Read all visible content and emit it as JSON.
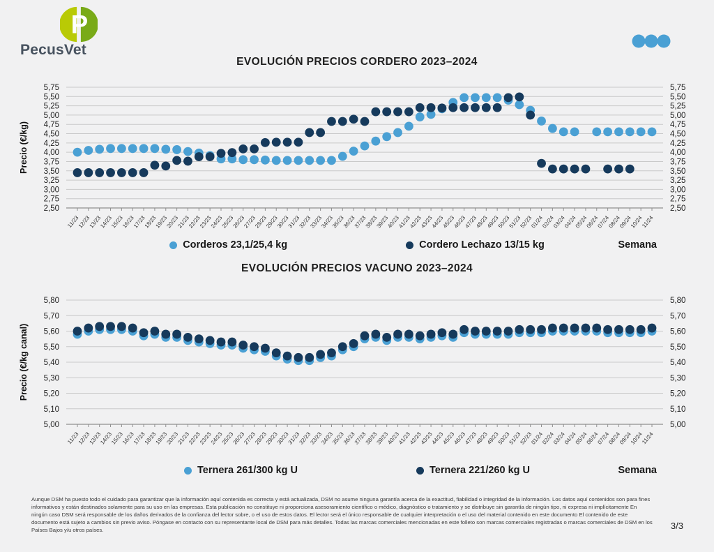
{
  "page": {
    "background": "#f1f1f2",
    "page_number": "3/3"
  },
  "header": {
    "brand": "PecusVet",
    "logo_letter": "P",
    "logo_color_left": "#b9ca05",
    "logo_color_right": "#79aa18",
    "dots_color": "#4aa0d4"
  },
  "footer": {
    "disclaimer": "Aunque DSM ha puesto todo el cuidado para garantizar que la información aquí contenida es correcta y está actualizada, DSM no asume ninguna garantía acerca de la exactitud, fiabilidad o integridad de la información. Los datos aquí contenidos son para fines informativos y están destinados solamente para su uso en las empresas. Esta publicación no constituye ni proporciona asesoramiento científico o médico, diagnóstico o tratamiento y se distribuye sin garantía de ningún tipo, ni expresa ni implícitamente En ningún caso DSM será responsable de los daños derivados de la confianza del lector sobre, o el uso de estos datos. El lector será el único responsable de cualquier interpretación o el uso del material contenido en este documento El contenido de este documento está sujeto a cambios sin previo aviso. Póngase en contacto con su representante local de DSM para más detalles. Todas las marcas comerciales mencionadas en este folleto son marcas comerciales registradas o marcas comerciales de DSM en los Países Bajos y/u otros países."
  },
  "chart_data": [
    {
      "type": "scatter",
      "title": "EVOLUCIÓN PRECIOS CORDERO 2023–2024",
      "ylabel": "Precio (€/kg)",
      "xlabel": "Semana",
      "ylim": [
        2.5,
        5.75
      ],
      "ytick_step": 0.25,
      "grid": true,
      "legend_position": "bottom",
      "categories": [
        "11/23",
        "12/23",
        "13/23",
        "14/23",
        "15/23",
        "16/23",
        "17/23",
        "18/23",
        "19/23",
        "20/23",
        "21/23",
        "22/23",
        "23/23",
        "24/23",
        "25/23",
        "26/23",
        "27/23",
        "28/23",
        "29/23",
        "30/23",
        "31/23",
        "32/23",
        "33/23",
        "34/23",
        "35/23",
        "36/23",
        "37/23",
        "38/23",
        "39/23",
        "40/23",
        "41/23",
        "42/23",
        "43/23",
        "44/23",
        "45/23",
        "46/23",
        "47/23",
        "48/23",
        "49/23",
        "50/23",
        "51/23",
        "52/23",
        "01/24",
        "02/24",
        "03/24",
        "04/24",
        "05/24",
        "06/24",
        "07/24",
        "08/24",
        "09/24",
        "10/24",
        "11/24"
      ],
      "series": [
        {
          "name": "Corderos 23,1/25,4 kg",
          "color": "#4aa0d4",
          "values": [
            4.0,
            4.05,
            4.08,
            4.1,
            4.1,
            4.1,
            4.1,
            4.1,
            4.08,
            4.07,
            4.02,
            3.98,
            3.91,
            3.82,
            3.82,
            3.8,
            3.8,
            3.79,
            3.78,
            3.78,
            3.78,
            3.78,
            3.78,
            3.78,
            3.89,
            4.03,
            4.17,
            4.3,
            4.42,
            4.53,
            4.7,
            4.95,
            5.02,
            5.17,
            5.34,
            5.47,
            5.47,
            5.47,
            5.47,
            5.4,
            5.28,
            5.13,
            4.84,
            4.64,
            4.55,
            4.55,
            null,
            4.55,
            4.55,
            4.55,
            4.55,
            4.55,
            4.55
          ]
        },
        {
          "name": "Cordero Lechazo 13/15 kg",
          "color": "#163a5c",
          "values": [
            3.45,
            3.45,
            3.45,
            3.45,
            3.45,
            3.45,
            3.45,
            3.65,
            3.63,
            3.78,
            3.76,
            3.88,
            3.88,
            3.97,
            3.99,
            4.09,
            4.09,
            4.26,
            4.27,
            4.27,
            4.27,
            4.53,
            4.53,
            4.83,
            4.83,
            4.89,
            4.83,
            5.09,
            5.09,
            5.09,
            5.09,
            5.2,
            5.2,
            5.19,
            5.2,
            5.2,
            5.2,
            5.2,
            5.2,
            5.47,
            5.49,
            5.0,
            3.7,
            3.55,
            3.55,
            3.55,
            3.55,
            null,
            3.55,
            3.55,
            3.55,
            null,
            null
          ]
        }
      ]
    },
    {
      "type": "scatter",
      "title": "EVOLUCIÓN PRECIOS VACUNO 2023–2024",
      "ylabel": "Precio (€/kg canal)",
      "xlabel": "Semana",
      "ylim": [
        5.0,
        5.8
      ],
      "ytick_step": 0.1,
      "grid": true,
      "legend_position": "bottom",
      "categories": [
        "11/23",
        "12/23",
        "13/23",
        "14/23",
        "15/23",
        "16/23",
        "17/23",
        "18/23",
        "19/23",
        "20/23",
        "21/23",
        "22/23",
        "23/23",
        "24/23",
        "25/23",
        "26/23",
        "27/23",
        "28/23",
        "29/23",
        "30/23",
        "31/23",
        "32/23",
        "33/23",
        "34/23",
        "35/23",
        "36/23",
        "37/23",
        "38/23",
        "39/23",
        "40/23",
        "41/23",
        "42/23",
        "43/23",
        "44/23",
        "45/23",
        "46/23",
        "47/23",
        "48/23",
        "49/23",
        "50/23",
        "51/23",
        "52/23",
        "01/24",
        "02/24",
        "03/24",
        "04/24",
        "05/24",
        "06/24",
        "07/24",
        "08/24",
        "09/24",
        "10/24",
        "11/24"
      ],
      "series": [
        {
          "name": "Ternera 261/300 kg U",
          "color": "#4aa0d4",
          "values": [
            5.58,
            5.6,
            5.61,
            5.61,
            5.61,
            5.6,
            5.57,
            5.58,
            5.56,
            5.56,
            5.54,
            5.53,
            5.52,
            5.51,
            5.51,
            5.49,
            5.48,
            5.47,
            5.44,
            5.42,
            5.41,
            5.41,
            5.43,
            5.44,
            5.48,
            5.5,
            5.55,
            5.56,
            5.54,
            5.56,
            5.56,
            5.55,
            5.56,
            5.57,
            5.56,
            5.59,
            5.58,
            5.58,
            5.58,
            5.58,
            5.59,
            5.59,
            5.59,
            5.6,
            5.6,
            5.6,
            5.6,
            5.6,
            5.59,
            5.59,
            5.59,
            5.59,
            5.6
          ]
        },
        {
          "name": "Ternera 221/260 kg U",
          "color": "#163a5c",
          "values": [
            5.6,
            5.62,
            5.63,
            5.63,
            5.63,
            5.62,
            5.59,
            5.6,
            5.58,
            5.58,
            5.56,
            5.55,
            5.54,
            5.53,
            5.53,
            5.51,
            5.5,
            5.49,
            5.46,
            5.44,
            5.43,
            5.43,
            5.45,
            5.46,
            5.5,
            5.52,
            5.57,
            5.58,
            5.56,
            5.58,
            5.58,
            5.57,
            5.58,
            5.59,
            5.58,
            5.61,
            5.6,
            5.6,
            5.6,
            5.6,
            5.61,
            5.61,
            5.61,
            5.62,
            5.62,
            5.62,
            5.62,
            5.62,
            5.61,
            5.61,
            5.61,
            5.61,
            5.62
          ]
        }
      ]
    }
  ]
}
